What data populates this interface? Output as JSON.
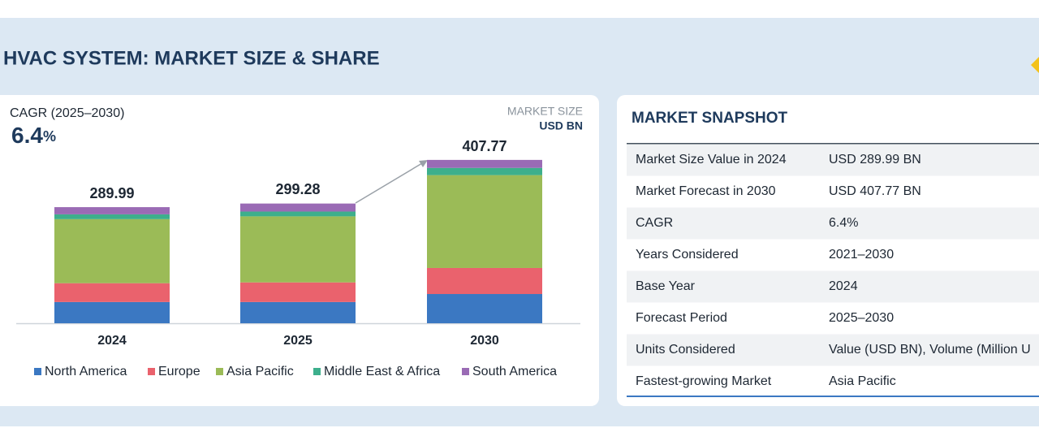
{
  "header": {
    "title": "HVAC SYSTEM: MARKET SIZE & SHARE"
  },
  "cagr": {
    "label": "CAGR (2025–2030)",
    "value": "6.4",
    "unit": "%"
  },
  "market_size": {
    "label": "MARKET SIZE",
    "unit": "USD BN"
  },
  "chart_data": {
    "type": "stacked_bar",
    "categories": [
      "2024",
      "2025",
      "2030"
    ],
    "totals": [
      289.99,
      299.28,
      407.77
    ],
    "series": [
      {
        "name": "North America",
        "color": "#3b78c2",
        "values": [
          53,
          53,
          73
        ]
      },
      {
        "name": "Europe",
        "color": "#ea626d",
        "values": [
          47,
          49,
          65
        ]
      },
      {
        "name": "Asia Pacific",
        "color": "#9bbb57",
        "values": [
          160,
          165,
          232
        ]
      },
      {
        "name": "Middle East & Africa",
        "color": "#3daf8c",
        "values": [
          12,
          12,
          18
        ]
      },
      {
        "name": "South America",
        "color": "#9a6bb5",
        "values": [
          18,
          20,
          20
        ]
      }
    ]
  },
  "snapshot": {
    "title": "MARKET SNAPSHOT",
    "rows": [
      [
        "Market Size Value in 2024",
        "USD 289.99 BN"
      ],
      [
        "Market Forecast in 2030",
        "USD 407.77 BN"
      ],
      [
        "CAGR",
        "6.4%"
      ],
      [
        "Years Considered",
        "2021–2030"
      ],
      [
        "Base Year",
        "2024"
      ],
      [
        "Forecast Period",
        "2025–2030"
      ],
      [
        "Units Considered",
        "Value (USD BN), Volume (Million U"
      ],
      [
        "Fastest-growing Market",
        "Asia Pacific"
      ]
    ]
  }
}
